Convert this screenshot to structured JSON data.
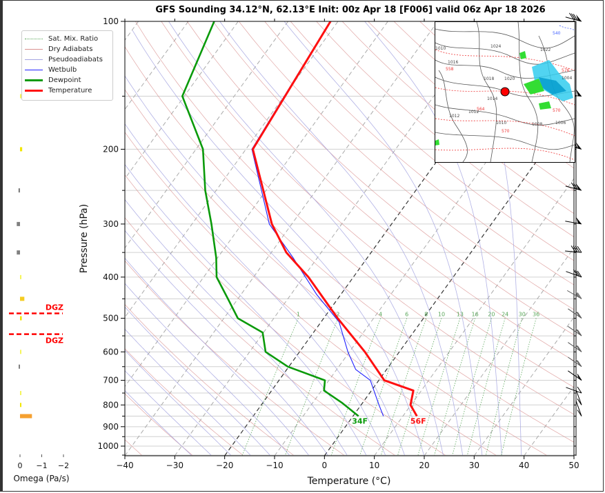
{
  "title": "GFS Sounding 34.12°N, 62.13°E Init: 00z Apr 18 [F006] valid 06z Apr 18 2026",
  "legend": {
    "items": [
      {
        "label": "Sat. Mix. Ratio",
        "color": "#59a659",
        "style": "dotted"
      },
      {
        "label": "Dry Adiabats",
        "color": "#d9908e",
        "style": "solid-thin"
      },
      {
        "label": "Pseudoadiabats",
        "color": "#a3a3e0",
        "style": "solid-thin"
      },
      {
        "label": "Wetbulb",
        "color": "#1f1fff",
        "style": "solid"
      },
      {
        "label": "Dewpoint",
        "color": "#0a9a0a",
        "style": "thick"
      },
      {
        "label": "Temperature",
        "color": "#ff1010",
        "style": "thick"
      }
    ]
  },
  "omega": {
    "xlabel": "Omega (Pa/s)",
    "ticks": [
      "0",
      "−1",
      "−2"
    ],
    "tick_values": [
      0,
      -1,
      -2
    ],
    "dgz_label": "DGZ",
    "dgz_pressures": [
      487,
      545
    ],
    "bars": [
      {
        "p": 150,
        "value": -0.03,
        "color": "#f5f55a"
      },
      {
        "p": 200,
        "value": -0.1,
        "color": "#f2e600"
      },
      {
        "p": 250,
        "value": 0.07,
        "color": "#808080"
      },
      {
        "p": 300,
        "value": 0.15,
        "color": "#808080"
      },
      {
        "p": 350,
        "value": 0.15,
        "color": "#808080"
      },
      {
        "p": 400,
        "value": -0.03,
        "color": "#f5f55a"
      },
      {
        "p": 450,
        "value": -0.2,
        "color": "#f5cc22"
      },
      {
        "p": 500,
        "value": -0.08,
        "color": "#f2e600"
      },
      {
        "p": 600,
        "value": -0.03,
        "color": "#f5f55a"
      },
      {
        "p": 650,
        "value": 0.05,
        "color": "#808080"
      },
      {
        "p": 750,
        "value": -0.03,
        "color": "#f5f55a"
      },
      {
        "p": 800,
        "value": -0.05,
        "color": "#f2e600"
      },
      {
        "p": 850,
        "value": -0.55,
        "color": "#f5a030"
      }
    ]
  },
  "chart_data": {
    "type": "line",
    "title": "GFS Sounding 34.12°N, 62.13°E Init: 00z Apr 18 [F006] valid 06z Apr 18 2026",
    "xlabel": "Temperature (°C)",
    "ylabel": "Pressure (hPa)",
    "xlim": [
      -40,
      50
    ],
    "ylim": [
      1050,
      100
    ],
    "x_ticks": [
      -40,
      -30,
      -20,
      -10,
      0,
      10,
      20,
      30,
      40,
      50
    ],
    "x_tick_labels": [
      "−40",
      "−30",
      "−20",
      "−10",
      "0",
      "10",
      "20",
      "30",
      "40",
      "50"
    ],
    "y_ticks": [
      100,
      200,
      300,
      400,
      500,
      600,
      700,
      800,
      900,
      1000
    ],
    "y_tick_labels": [
      "100",
      "200",
      "300",
      "400",
      "500",
      "600",
      "700",
      "800",
      "900",
      "1000"
    ],
    "grid": true,
    "series": [
      {
        "name": "Temperature",
        "color": "#ff1010",
        "p": [
          100,
          200,
          300,
          350,
          400,
          500,
          600,
          700,
          740,
          800,
          850
        ],
        "t": [
          -61.5,
          -58.6,
          -44.0,
          -37.0,
          -29.0,
          -17.2,
          -6.9,
          1.1,
          8.4,
          9.9,
          12.8
        ]
      },
      {
        "name": "Dewpoint",
        "color": "#0a9a0a",
        "p": [
          100,
          150,
          200,
          250,
          300,
          360,
          400,
          450,
          500,
          540,
          600,
          650,
          700,
          740,
          790,
          850
        ],
        "t": [
          -84.8,
          -80.4,
          -68.6,
          -62.2,
          -56.1,
          -50.3,
          -47.4,
          -42.0,
          -37.2,
          -30.2,
          -26.8,
          -20.2,
          -10.8,
          -9.5,
          -4.2,
          1.1
        ]
      },
      {
        "name": "Wetbulb",
        "color": "#1f1fff",
        "p": [
          100,
          200,
          300,
          360,
          440,
          510,
          600,
          660,
          700,
          800,
          850
        ],
        "t": [
          -61.6,
          -58.8,
          -44.5,
          -34.9,
          -24.8,
          -16.4,
          -10.3,
          -6.2,
          -1.7,
          3.6,
          6.1
        ]
      }
    ],
    "surface_labels": [
      {
        "series": "Dewpoint",
        "text": "34F",
        "color": "#0a9a0a"
      },
      {
        "series": "Temperature",
        "text": "56F",
        "color": "#ff1010"
      }
    ],
    "mixing_ratio_labels": [
      "1",
      "2",
      "4",
      "6",
      "8",
      "10",
      "13",
      "16",
      "20",
      "24",
      "30",
      "36"
    ],
    "mixing_ratio_values": [
      1,
      2,
      4,
      6,
      8,
      10,
      13,
      16,
      20,
      24,
      30,
      36
    ],
    "wind_barbs": [
      {
        "p": 100,
        "speed_kt": 80,
        "dir_deg": 255
      },
      {
        "p": 150,
        "speed_kt": 50,
        "dir_deg": 265
      },
      {
        "p": 200,
        "speed_kt": 80,
        "dir_deg": 255
      },
      {
        "p": 250,
        "speed_kt": 70,
        "dir_deg": 255
      },
      {
        "p": 300,
        "speed_kt": 50,
        "dir_deg": 260
      },
      {
        "p": 350,
        "speed_kt": 40,
        "dir_deg": 265
      },
      {
        "p": 400,
        "speed_kt": 30,
        "dir_deg": 250
      },
      {
        "p": 450,
        "speed_kt": 25,
        "dir_deg": 240
      },
      {
        "p": 500,
        "speed_kt": 20,
        "dir_deg": 235
      },
      {
        "p": 550,
        "speed_kt": 20,
        "dir_deg": 235
      },
      {
        "p": 600,
        "speed_kt": 20,
        "dir_deg": 235
      },
      {
        "p": 650,
        "speed_kt": 20,
        "dir_deg": 235
      },
      {
        "p": 700,
        "speed_kt": 15,
        "dir_deg": 235
      },
      {
        "p": 750,
        "speed_kt": 10,
        "dir_deg": 250
      },
      {
        "p": 800,
        "speed_kt": 10,
        "dir_deg": 200
      },
      {
        "p": 850,
        "speed_kt": 10,
        "dir_deg": 200
      }
    ]
  },
  "inset_map": {
    "marker_color": "#ff0000",
    "isobar_labels": [
      "1024",
      "1022",
      "1020",
      "1018",
      "1016",
      "1014",
      "1012",
      "1012",
      "1010",
      "1008",
      "1006",
      "1004",
      "1010"
    ],
    "thickness_labels": [
      "540",
      "558",
      "564",
      "570",
      "570",
      "576"
    ]
  }
}
